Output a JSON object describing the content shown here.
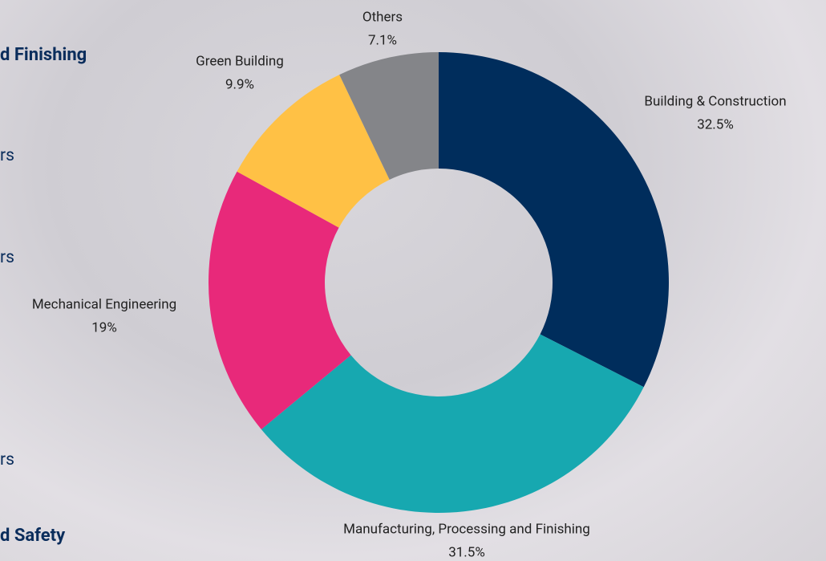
{
  "side_texts": [
    "d Finishing",
    "rs",
    "rs",
    "rs",
    "d Safety"
  ],
  "chart_data": {
    "type": "pie",
    "categories": [
      "Building & Construction",
      "Manufacturing, Processing and Finishing",
      "Mechanical Engineering",
      "Green Building",
      "Others"
    ],
    "values": [
      32.5,
      31.5,
      19,
      9.9,
      7.1
    ],
    "value_labels": [
      "32.5%",
      "31.5%",
      "19%",
      "9.9%",
      "7.1%"
    ],
    "colors": [
      "#002d5c",
      "#17a8b0",
      "#e8297a",
      "#ffc145",
      "#848589"
    ],
    "donut": true
  }
}
